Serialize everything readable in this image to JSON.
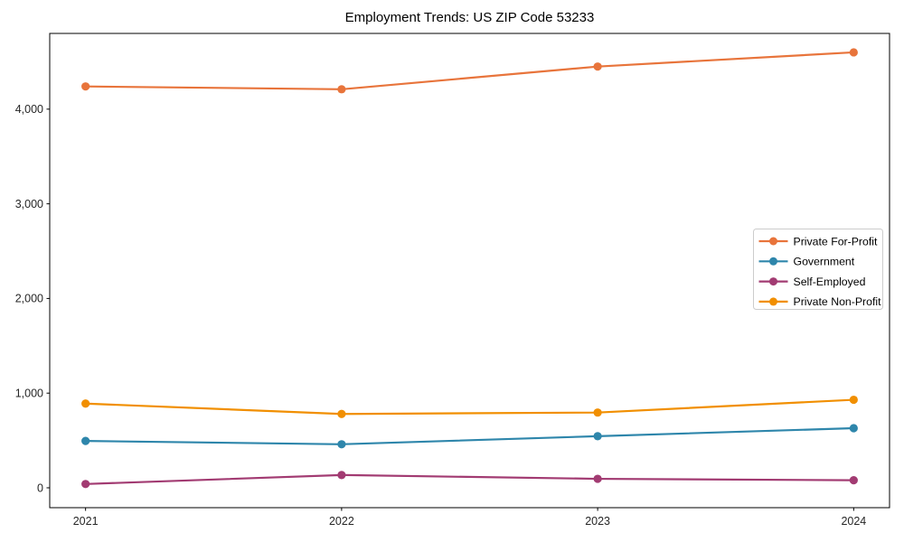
{
  "chart_data": {
    "type": "line",
    "title": "Employment Trends: US ZIP Code 53233",
    "xlabel": "",
    "ylabel": "",
    "x": [
      2021,
      2022,
      2023,
      2024
    ],
    "x_tick_labels": [
      "2021",
      "2022",
      "2023",
      "2024"
    ],
    "y_ticks": [
      0,
      1000,
      2000,
      3000,
      4000
    ],
    "y_tick_labels": [
      "0",
      "1,000",
      "2,000",
      "3,000",
      "4,000"
    ],
    "xlim": [
      2020.86,
      2024.14
    ],
    "ylim": [
      -210,
      4800
    ],
    "grid": false,
    "legend_position": "center-right",
    "marker": "circle",
    "series": [
      {
        "name": "Private For-Profit",
        "color": "#E8743B",
        "values": [
          4240,
          4210,
          4450,
          4600
        ]
      },
      {
        "name": "Government",
        "color": "#2E86AB",
        "values": [
          495,
          460,
          545,
          630
        ]
      },
      {
        "name": "Self-Employed",
        "color": "#A23B72",
        "values": [
          40,
          135,
          95,
          80
        ]
      },
      {
        "name": "Private Non-Profit",
        "color": "#F18F01",
        "values": [
          890,
          780,
          795,
          930
        ]
      }
    ]
  },
  "style": {
    "background": "#ffffff",
    "axis_color": "#000000",
    "tick_label_color": "#262626",
    "title_color": "#000000",
    "legend_border_color": "#cccccc",
    "legend_background": "#ffffff"
  }
}
